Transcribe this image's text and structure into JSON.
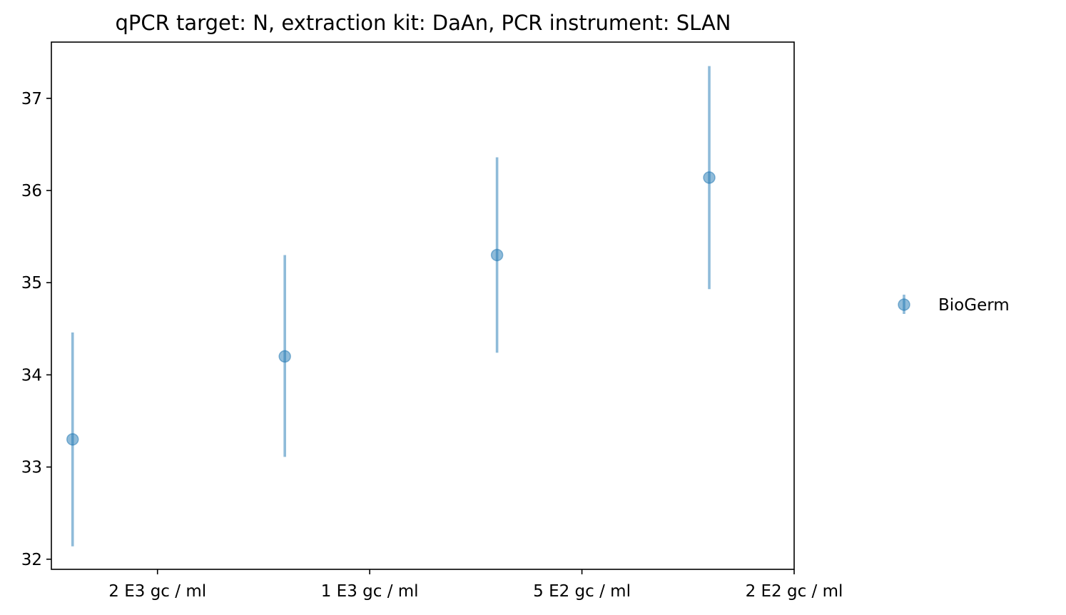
{
  "chart_data": {
    "type": "scatter",
    "title": "qPCR target: N, extraction kit: DaAn, PCR instrument: SLAN",
    "xlabel": "",
    "ylabel": "",
    "categories": [
      "2 E3 gc / ml",
      "1 E3 gc / ml",
      "5 E2 gc / ml",
      "2 E2 gc / ml"
    ],
    "yticks": [
      32,
      33,
      34,
      35,
      36,
      37
    ],
    "ylim": [
      31.89,
      37.61
    ],
    "grid": false,
    "legend_position": "right",
    "series": [
      {
        "name": "BioGerm",
        "color": "#1f77b4",
        "x": [
          -0.4,
          0.6,
          1.6,
          2.6
        ],
        "y": [
          33.3,
          34.2,
          35.3,
          36.14
        ],
        "yerr_low": [
          32.14,
          33.11,
          34.24,
          34.93
        ],
        "yerr_high": [
          34.46,
          35.3,
          36.36,
          37.35
        ]
      }
    ]
  }
}
